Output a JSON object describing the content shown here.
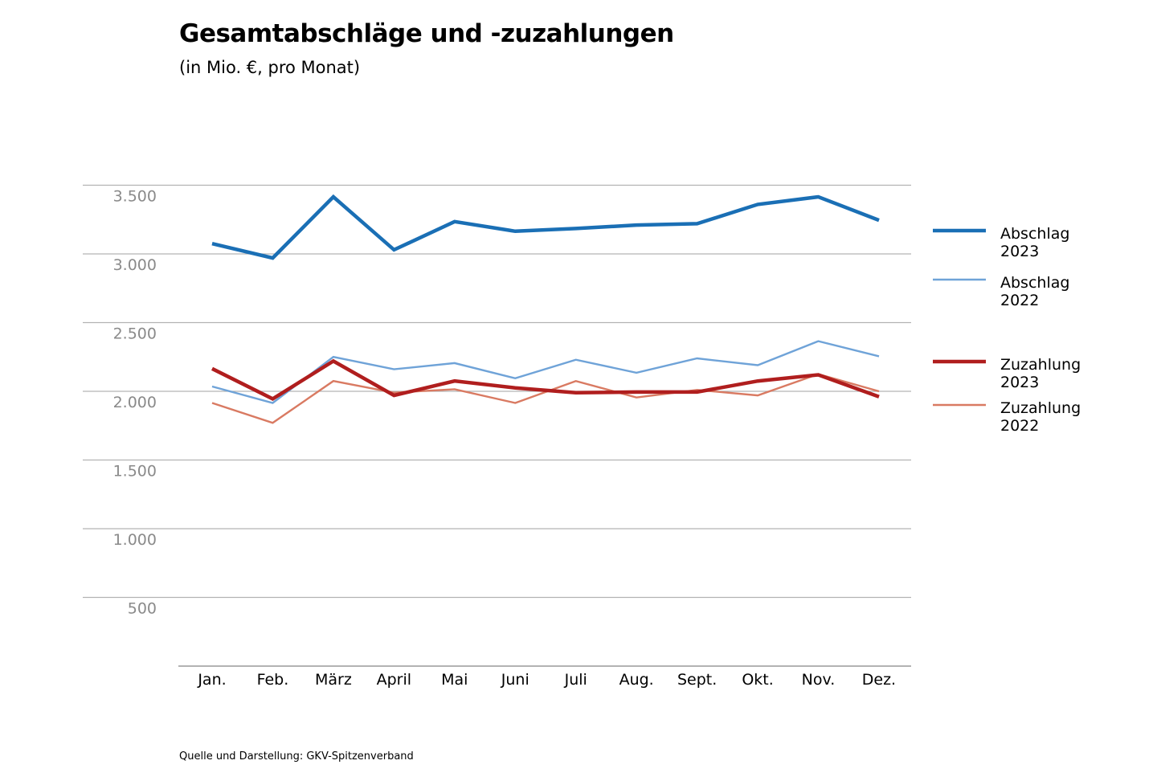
{
  "header": {
    "title": "Gesamtabschläge und -zuzahlungen",
    "subtitle": "(in Mio. €, pro Monat)"
  },
  "footer": {
    "source": "Quelle und Darstellung: GKV-Spitzenverband"
  },
  "colors": {
    "grid": "#b3b3b3",
    "axis": "#9a9a9a",
    "tick_y": "#8a8a8a"
  },
  "chart_data": {
    "type": "line",
    "title": "Gesamtabschläge und -zuzahlungen",
    "subtitle": "(in Mio. €, pro Monat)",
    "xlabel": "",
    "ylabel": "",
    "ylim": [
      0,
      3500
    ],
    "y_ticks": [
      500,
      1000,
      1500,
      2000,
      2500,
      3000,
      3500
    ],
    "y_tick_labels": [
      "500",
      "1.000",
      "1.500",
      "2.000",
      "2.500",
      "3.000",
      "3.500"
    ],
    "grid": true,
    "legend_position": "right",
    "categories": [
      "Jan.",
      "Feb.",
      "März",
      "April",
      "Mai",
      "Juni",
      "Juli",
      "Aug.",
      "Sept.",
      "Okt.",
      "Nov.",
      "Dez."
    ],
    "series": [
      {
        "id": "abschlag-2023",
        "name": "Abschlag 2023",
        "legend_lines": [
          "Abschlag",
          "2023"
        ],
        "color": "#1a6fb5",
        "weight": "thick",
        "values": [
          3075,
          2970,
          3415,
          3030,
          3235,
          3165,
          3185,
          3210,
          3220,
          3360,
          3415,
          3245
        ]
      },
      {
        "id": "abschlag-2022",
        "name": "Abschlag 2022",
        "legend_lines": [
          "Abschlag",
          "2022"
        ],
        "color": "#6fa3d8",
        "weight": "thin",
        "values": [
          2035,
          1915,
          2250,
          2160,
          2205,
          2095,
          2230,
          2135,
          2240,
          2190,
          2365,
          2255
        ]
      },
      {
        "id": "zuzahlung-2023",
        "name": "Zuzahlung 2023",
        "legend_lines": [
          "Zuzahlung",
          "2023"
        ],
        "color": "#b01e1e",
        "weight": "thick",
        "values": [
          2165,
          1945,
          2220,
          1970,
          2075,
          2025,
          1990,
          1995,
          1995,
          2075,
          2120,
          1960
        ]
      },
      {
        "id": "zuzahlung-2022",
        "name": "Zuzahlung 2022",
        "legend_lines": [
          "Zuzahlung",
          "2022"
        ],
        "color": "#d97a62",
        "weight": "thin",
        "values": [
          1915,
          1770,
          2075,
          1990,
          2015,
          1915,
          2075,
          1955,
          2010,
          1970,
          2125,
          2000
        ]
      }
    ]
  }
}
